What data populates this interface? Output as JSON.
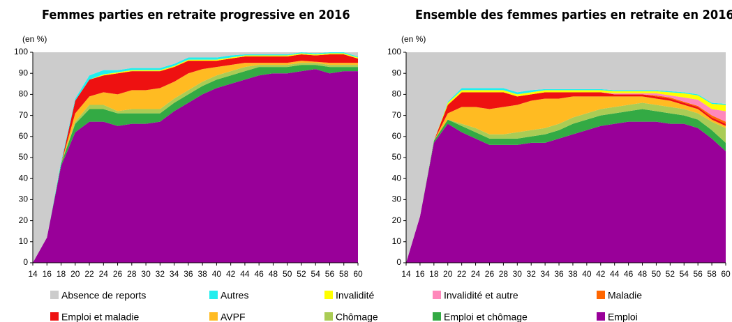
{
  "chart_data": [
    {
      "type": "stacked_area",
      "title": "Femmes parties en retraite progressive en 2016",
      "ylabel": "(en %)",
      "x": [
        14,
        16,
        18,
        20,
        22,
        24,
        26,
        28,
        30,
        32,
        34,
        36,
        38,
        40,
        42,
        44,
        46,
        48,
        50,
        52,
        54,
        56,
        58,
        60
      ],
      "xlim": [
        14,
        60
      ],
      "xticks": [
        14,
        16,
        18,
        20,
        22,
        24,
        26,
        28,
        30,
        32,
        34,
        36,
        38,
        40,
        42,
        44,
        46,
        48,
        50,
        52,
        54,
        56,
        58,
        60
      ],
      "ylim": [
        0,
        100
      ],
      "yticks": [
        0,
        10,
        20,
        30,
        40,
        50,
        60,
        70,
        80,
        90,
        100
      ],
      "series": [
        {
          "name": "Absence de reports",
          "color": "#cccccc",
          "values": [
            100,
            88,
            52,
            22,
            11,
            8.5,
            8.5,
            7.5,
            7.5,
            7.5,
            5.5,
            2.5,
            2.5,
            2.5,
            1.5,
            1,
            1,
            1,
            1,
            0,
            0.5,
            0,
            0,
            2
          ]
        },
        {
          "name": "Autres",
          "color": "#22eeee",
          "values": [
            0,
            0,
            1,
            1,
            2,
            2,
            1,
            1,
            1,
            1,
            1,
            1,
            1,
            1,
            1,
            0.5,
            0.5,
            0.5,
            0.5,
            0.5,
            0.5,
            0.5,
            0.5,
            0.5
          ]
        },
        {
          "name": "Invalidité",
          "color": "#ffff00",
          "values": [
            0,
            0,
            0,
            0,
            0,
            0.5,
            0.5,
            0.5,
            0.5,
            0.5,
            0.5,
            0.5,
            0.5,
            0.5,
            0.5,
            0.5,
            0.5,
            0.5,
            0.5,
            0.5,
            0.5,
            0.5,
            0.5,
            0.5
          ]
        },
        {
          "name": "Invalidité et autre",
          "color": "#ff88bb",
          "values": [
            0,
            0,
            0,
            0,
            0,
            0,
            0,
            0,
            0,
            0,
            0,
            0,
            0,
            0,
            0,
            0,
            0,
            0,
            0,
            0,
            0,
            0,
            0,
            0
          ]
        },
        {
          "name": "Maladie",
          "color": "#ff6600",
          "values": [
            0,
            0,
            0,
            0,
            0,
            0,
            0,
            0,
            0,
            0,
            0,
            0,
            0,
            0,
            0,
            0,
            0,
            0,
            0,
            0,
            0,
            0,
            0,
            0
          ]
        },
        {
          "name": "Emploi et maladie",
          "color": "#ee1111",
          "values": [
            0,
            0,
            0,
            6,
            8,
            8,
            10,
            9,
            9,
            8,
            7,
            6,
            4,
            3,
            3,
            3,
            3,
            3,
            3,
            3,
            3,
            4,
            4,
            2
          ]
        },
        {
          "name": "AVPF",
          "color": "#ffbb22",
          "values": [
            0,
            0,
            0,
            4,
            4,
            6,
            8,
            9,
            9,
            10,
            8,
            8,
            6,
            4,
            3,
            2,
            1,
            1,
            1,
            1,
            0.5,
            1,
            1,
            1
          ]
        },
        {
          "name": "Chômage",
          "color": "#aacc55",
          "values": [
            0,
            0,
            0,
            1,
            2,
            2,
            1,
            2,
            2,
            2,
            2,
            2,
            2,
            2,
            2,
            2,
            1,
            1,
            1,
            1,
            1,
            1,
            1,
            1
          ]
        },
        {
          "name": "Emploi et chômage",
          "color": "#33aa44",
          "values": [
            0,
            0,
            1,
            4,
            6,
            6,
            6,
            5,
            5,
            4,
            4,
            4,
            4,
            4,
            4,
            4,
            4,
            3,
            3,
            3,
            2,
            3,
            2,
            2
          ]
        },
        {
          "name": "Emploi",
          "color": "#990099",
          "values": [
            0,
            12,
            46,
            62,
            67,
            67,
            65,
            66,
            66,
            67,
            72,
            76,
            80,
            83,
            85,
            87,
            89,
            90,
            90,
            91,
            92,
            90,
            91,
            91
          ]
        }
      ]
    },
    {
      "type": "stacked_area",
      "title": "Ensemble des femmes parties en retraite en 2016",
      "ylabel": "(en %)",
      "x": [
        14,
        16,
        18,
        20,
        22,
        24,
        26,
        28,
        30,
        32,
        34,
        36,
        38,
        40,
        42,
        44,
        46,
        48,
        50,
        52,
        54,
        56,
        58,
        60
      ],
      "xlim": [
        14,
        60
      ],
      "xticks": [
        14,
        16,
        18,
        20,
        22,
        24,
        26,
        28,
        30,
        32,
        34,
        36,
        38,
        40,
        42,
        44,
        46,
        48,
        50,
        52,
        54,
        56,
        58,
        60
      ],
      "ylim": [
        0,
        100
      ],
      "yticks": [
        0,
        10,
        20,
        30,
        40,
        50,
        60,
        70,
        80,
        90,
        100
      ],
      "series": [
        {
          "name": "Absence de reports",
          "color": "#cccccc",
          "values": [
            100,
            78,
            42,
            23.5,
            17,
            17,
            17,
            17,
            19,
            18,
            17.5,
            17.5,
            17.5,
            17.5,
            17.5,
            18,
            18,
            18,
            18,
            18.5,
            19,
            20,
            24,
            24.5
          ]
        },
        {
          "name": "Autres",
          "color": "#22eeee",
          "values": [
            0,
            0,
            0,
            0.5,
            1,
            1,
            1,
            1,
            1,
            1,
            0.5,
            0.5,
            0.5,
            0.5,
            0.5,
            0.5,
            0.5,
            0.5,
            0.5,
            0.5,
            0.5,
            0.5,
            0.5,
            0.5
          ]
        },
        {
          "name": "Invalidité",
          "color": "#ffff00",
          "values": [
            0,
            0,
            0,
            1,
            1,
            1,
            1,
            1,
            1,
            1,
            1,
            1,
            1,
            1,
            1,
            1,
            1,
            1,
            1,
            1.5,
            2,
            2,
            2.5,
            3
          ]
        },
        {
          "name": "Invalidité et autre",
          "color": "#ff88bb",
          "values": [
            0,
            0,
            0,
            0,
            0,
            0,
            0,
            0,
            0,
            0,
            0,
            0,
            0,
            0,
            0,
            0.5,
            0.5,
            0.5,
            1,
            1,
            2,
            3,
            3,
            5
          ]
        },
        {
          "name": "Maladie",
          "color": "#ff6600",
          "values": [
            0,
            0,
            0,
            0,
            0,
            0,
            0,
            0,
            0,
            0,
            0,
            0,
            0,
            0,
            0,
            0,
            0,
            0,
            0.5,
            0.5,
            0.5,
            0.5,
            1,
            1
          ]
        },
        {
          "name": "Emploi et maladie",
          "color": "#ee1111",
          "values": [
            0,
            0,
            0,
            4,
            7,
            7,
            8,
            7,
            4,
            3,
            3,
            3,
            2,
            2,
            2,
            1,
            1,
            1,
            1,
            1,
            1,
            1,
            1,
            1
          ]
        },
        {
          "name": "AVPF",
          "color": "#ffbb22",
          "values": [
            0,
            0,
            0,
            3,
            8,
            10,
            12,
            13,
            13,
            14,
            14,
            12,
            10,
            8,
            6,
            5,
            4,
            3,
            3,
            3,
            2,
            2,
            1,
            1
          ]
        },
        {
          "name": "Chômage",
          "color": "#aacc55",
          "values": [
            0,
            0,
            0,
            0,
            1,
            2,
            2,
            2,
            3,
            3,
            3,
            3,
            3,
            3,
            3,
            3,
            3,
            3,
            3,
            3,
            3,
            3,
            4,
            7
          ]
        },
        {
          "name": "Emploi et chômage",
          "color": "#33aa44",
          "values": [
            0,
            0,
            1,
            2,
            3,
            3,
            3,
            3,
            3,
            3,
            4,
            4,
            5,
            5,
            5,
            5,
            5,
            6,
            5,
            5,
            4,
            4,
            4,
            4
          ]
        },
        {
          "name": "Emploi",
          "color": "#990099",
          "values": [
            0,
            22,
            57,
            66,
            62,
            59,
            56,
            56,
            56,
            57,
            57,
            59,
            61,
            63,
            65,
            66,
            67,
            67,
            67,
            66,
            66,
            64,
            59,
            53
          ]
        }
      ]
    }
  ]
}
